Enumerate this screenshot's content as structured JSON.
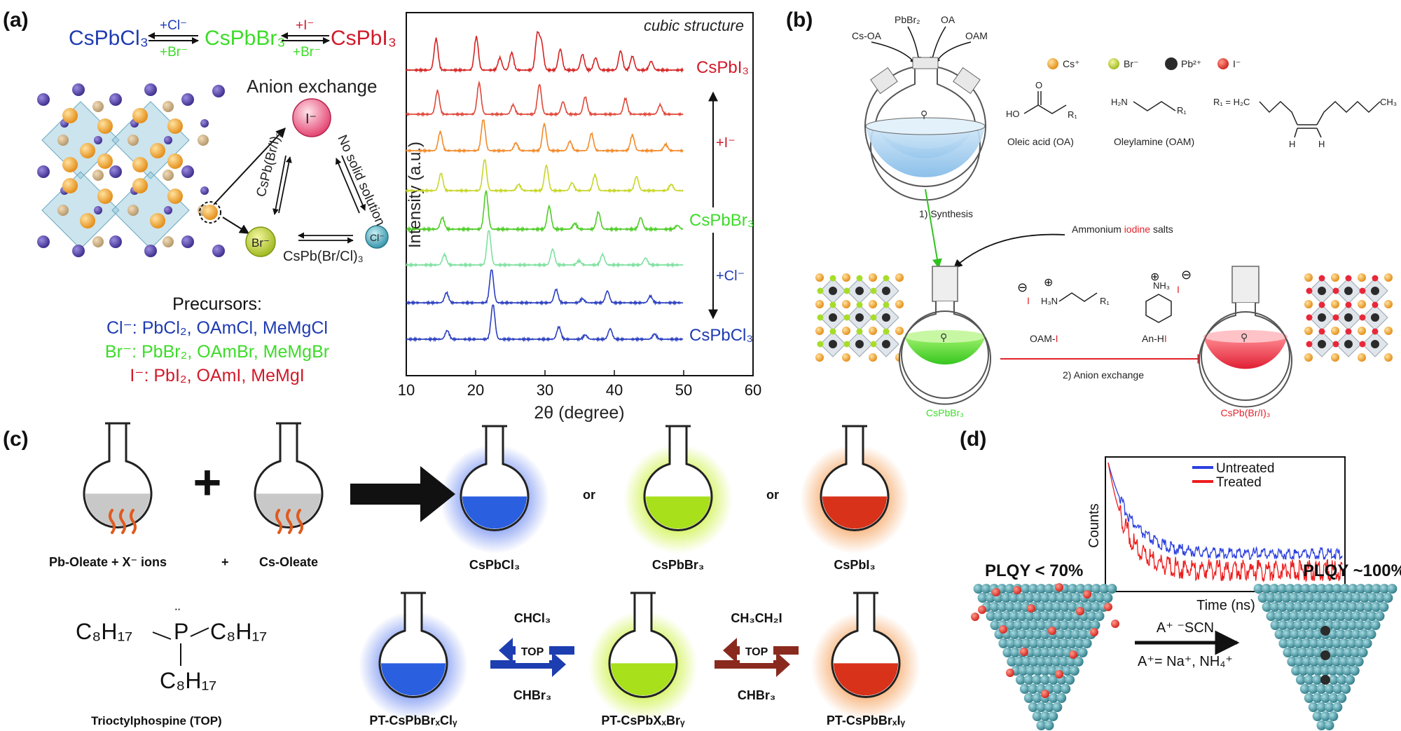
{
  "colors": {
    "blue": "#1f3bb3",
    "green": "#3cdc28",
    "red": "#d11a2a",
    "cs": "#f5a128",
    "br": "#a7dd2a",
    "pb": "#2b2b2b",
    "iodide": "#e8283a",
    "teal": "#3f95a3",
    "navy": "#4a3aa0"
  },
  "icons": [
    "flask-icon",
    "atom-icon",
    "heat-wave-icon",
    "arrow-icon",
    "plus-icon",
    "crystal-lattice-icon",
    "nanocrystal-icon"
  ],
  "panel_a": {
    "label": "(a)",
    "eq_cl": "CsPbCl₃",
    "eq_br": "CsPbBr₃",
    "eq_i": "CsPbI₃",
    "plus_cl": "+Cl⁻",
    "plus_br": "+Br⁻",
    "plus_i": "+I⁻",
    "plus_br2": "+Br⁻",
    "anion_exchange": "Anion exchange",
    "ion_i": "I⁻",
    "ion_br": "Br⁻",
    "ion_cl": "Cl⁻",
    "tri_left": "CsPb(Br/I)₃",
    "tri_right": "No solid solution",
    "tri_bottom": "CsPb(Br/Cl)₃",
    "precursors_title": "Precursors:",
    "prec_cl": "Cl⁻: PbCl₂, OAmCl, MeMgCl",
    "prec_br": "Br⁻: PbBr₂, OAmBr, MeMgBr",
    "prec_i": "I⁻: PbI₂, OAmI, MeMgI"
  },
  "chart_data": [
    {
      "type": "line",
      "title": "cubic structure",
      "xlabel": "2θ (degree)",
      "ylabel": "Intensity (a.u.)",
      "xlim": [
        10,
        60
      ],
      "xticks": [
        10,
        20,
        30,
        40,
        50,
        60
      ],
      "series_labels": {
        "top": "CsPbI₃",
        "middle": "CsPbBr₃",
        "bottom": "CsPbCl₃",
        "up_arrow": "+I⁻",
        "down_arrow": "+Cl⁻"
      },
      "series": [
        {
          "color": "#d62222",
          "peaks": [
            [
              14.3,
              0.9
            ],
            [
              20.1,
              0.95
            ],
            [
              23.5,
              0.35
            ],
            [
              25.2,
              0.5
            ],
            [
              28.9,
              1.0
            ],
            [
              29.5,
              0.75
            ],
            [
              32.2,
              0.6
            ],
            [
              35.4,
              0.45
            ],
            [
              37.3,
              0.35
            ],
            [
              40.9,
              0.55
            ],
            [
              42.6,
              0.4
            ],
            [
              45.3,
              0.25
            ]
          ]
        },
        {
          "color": "#e0473a",
          "peaks": [
            [
              14.5,
              0.75
            ],
            [
              20.5,
              1.0
            ],
            [
              25.4,
              0.3
            ],
            [
              29.2,
              0.95
            ],
            [
              32.6,
              0.4
            ],
            [
              35.8,
              0.55
            ],
            [
              41.6,
              0.5
            ],
            [
              46.6,
              0.3
            ]
          ]
        },
        {
          "color": "#f28a2a",
          "peaks": [
            [
              14.9,
              0.6
            ],
            [
              21.1,
              1.0
            ],
            [
              25.8,
              0.25
            ],
            [
              29.9,
              0.85
            ],
            [
              33.6,
              0.3
            ],
            [
              36.7,
              0.55
            ],
            [
              42.6,
              0.5
            ],
            [
              47.4,
              0.2
            ]
          ]
        },
        {
          "color": "#c8d62a",
          "peaks": [
            [
              15.0,
              0.55
            ],
            [
              21.3,
              1.0
            ],
            [
              26.2,
              0.2
            ],
            [
              30.2,
              0.8
            ],
            [
              33.9,
              0.25
            ],
            [
              37.2,
              0.5
            ],
            [
              43.2,
              0.45
            ],
            [
              48.2,
              0.2
            ]
          ]
        },
        {
          "color": "#4fcc28",
          "peaks": [
            [
              15.2,
              0.3
            ],
            [
              21.5,
              1.0
            ],
            [
              30.6,
              0.6
            ],
            [
              34.3,
              0.15
            ],
            [
              37.7,
              0.45
            ],
            [
              43.8,
              0.3
            ],
            [
              49.1,
              0.1
            ]
          ]
        },
        {
          "color": "#7fe0a0",
          "peaks": [
            [
              15.5,
              0.3
            ],
            [
              21.9,
              1.0
            ],
            [
              31.1,
              0.45
            ],
            [
              34.9,
              0.12
            ],
            [
              38.3,
              0.3
            ],
            [
              44.5,
              0.2
            ]
          ]
        },
        {
          "color": "#2a3fc0",
          "peaks": [
            [
              15.8,
              0.3
            ],
            [
              22.3,
              1.0
            ],
            [
              31.6,
              0.4
            ],
            [
              35.4,
              0.12
            ],
            [
              39.0,
              0.35
            ],
            [
              45.2,
              0.2
            ]
          ]
        },
        {
          "color": "#2a3fc0",
          "peaks": [
            [
              15.9,
              0.25
            ],
            [
              22.5,
              1.0
            ],
            [
              32.0,
              0.35
            ],
            [
              35.8,
              0.12
            ],
            [
              39.4,
              0.3
            ],
            [
              45.8,
              0.15
            ]
          ]
        }
      ]
    },
    {
      "type": "line",
      "xlabel": "Time (ns)",
      "ylabel": "Counts",
      "legend": "top-right",
      "series": [
        {
          "name": "Untreated",
          "color": "#2b3fe0",
          "tau_fast": 0.1,
          "plateau": 0.24
        },
        {
          "name": "Treated",
          "color": "#ee1c1c",
          "tau_fast": 0.08,
          "plateau": 0.1
        }
      ]
    }
  ],
  "panel_b": {
    "label": "(b)",
    "in1": "Cs-OA",
    "in2": "PbBr₂",
    "in3": "OA",
    "in4": "OAM",
    "leg_cs": "Cs⁺",
    "leg_br": "Br⁻",
    "leg_pb": "Pb²⁺",
    "leg_i": "I⁻",
    "oa_name": "Oleic acid (OA)",
    "oam_name": "Oleylamine (OAM)",
    "oa_ho": "HO",
    "oa_o": "O",
    "r1": "R₁",
    "r1_def": "R₁ = H₂C",
    "ch3": "CH₃",
    "h_left": "H",
    "h_right": "H",
    "h2n": "H₂N",
    "synthesis": "1) Synthesis",
    "ammonium_pre": "Ammonium ",
    "ammonium_mid": "iodine",
    "ammonium_post": " salts",
    "oam_i_a": "OAM-",
    "oam_i_b": "I",
    "an_hi_a": "An-H",
    "an_hi_b": "I",
    "h3n": "H₃N",
    "nh3": "NH₃",
    "anion_exchange": "2) Anion exchange",
    "product_br": "CsPbBr₃",
    "product_bri": "CsPb(Br/I)₃"
  },
  "panel_c": {
    "label": "(c)",
    "pb_oleate": "Pb-Oleate + X⁻ ions",
    "plus": "+",
    "cs_oleate": "Cs-Oleate",
    "or1": "or",
    "or2": "or",
    "cspbcl3": "CsPbCl₃",
    "cspbbr3": "CsPbBr₃",
    "cspbi3": "CsPbI₃",
    "top_name": "Trioctylphospine (TOP)",
    "c8h17": "C₈H₁₇",
    "p": "P",
    "chcl3": "CHCl₃",
    "chbr3_a": "CHBr₃",
    "ch3ch2i": "CH₃CH₂I",
    "chbr3_b": "CHBr₃",
    "top1": "TOP",
    "top2": "TOP",
    "pt_cl": "PT-CsPbBrₓClᵧ",
    "pt_x": "PT-CsPbXₓBrᵧ",
    "pt_i": "PT-CsPbBrₓIᵧ"
  },
  "panel_d": {
    "label": "(d)",
    "plqy_left": "PLQY < 70%",
    "plqy_right": "PLQY ~100%",
    "reagent": "A⁺ ⁻SCN",
    "a_def": "A⁺= Na⁺, NH₄⁺"
  }
}
